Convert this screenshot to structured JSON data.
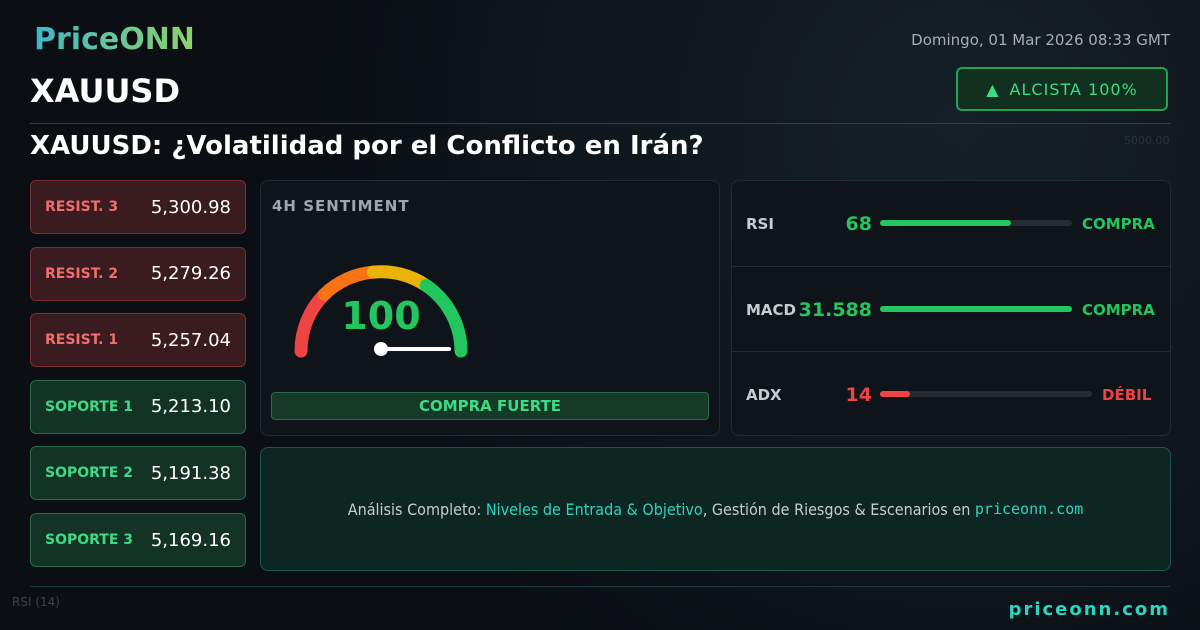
{
  "brand": "PriceONN",
  "date": "Domingo, 01 Mar 2026 08:33 GMT",
  "symbol": "XAUUSD",
  "badge": "ALCISTA 100%",
  "headline": "XAUUSD: ¿Volatilidad por el Conflicto en Irán?",
  "levels": [
    {
      "label": "RESIST. 3",
      "value": "5,300.98",
      "kind": "resistance"
    },
    {
      "label": "RESIST. 2",
      "value": "5,279.26",
      "kind": "resistance"
    },
    {
      "label": "RESIST. 1",
      "value": "5,257.04",
      "kind": "resistance"
    },
    {
      "label": "SOPORTE 1",
      "value": "5,213.10",
      "kind": "support"
    },
    {
      "label": "SOPORTE 2",
      "value": "5,191.38",
      "kind": "support"
    },
    {
      "label": "SOPORTE 3",
      "value": "5,169.16",
      "kind": "support"
    }
  ],
  "sentiment": {
    "title": "4H SENTIMENT",
    "value": 100,
    "range": [
      0,
      100
    ],
    "verdict": "COMPRA FUERTE"
  },
  "indicators": [
    {
      "name": "RSI",
      "value": 68,
      "range": [
        0,
        100
      ],
      "signal": "COMPRA",
      "color": "#22c55e"
    },
    {
      "name": "MACD",
      "value": 31.588,
      "signal": "COMPRA",
      "color": "#22c55e"
    },
    {
      "name": "ADX",
      "value": 14,
      "range": [
        0,
        100
      ],
      "signal": "DÉBIL",
      "color": "#ef4444"
    }
  ],
  "cta": {
    "lead": "Análisis Completo:",
    "highlight": "Niveles de Entrada & Objetivo",
    "rest": ", Gestión de Riesgos & Escenarios en",
    "site": "priceonn.com"
  },
  "footer": "priceonn.com",
  "background": {
    "price_label": "5000.00",
    "panel_label": "RSI",
    "panel_param": "(14)"
  }
}
